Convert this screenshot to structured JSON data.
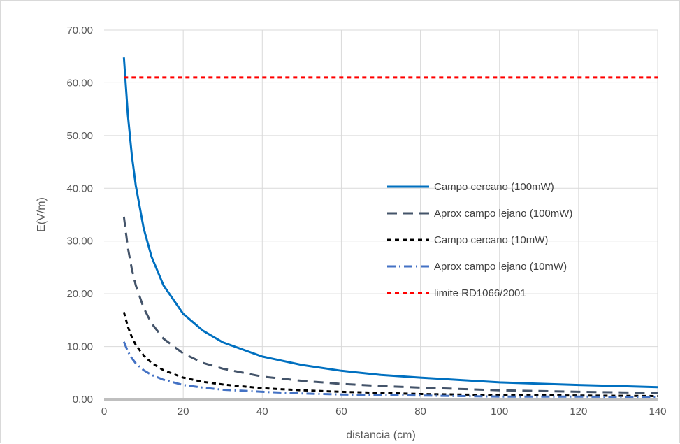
{
  "chart_data": {
    "type": "line",
    "title": "",
    "xlabel": "distancia (cm)",
    "ylabel": "E(V/m)",
    "xlim": [
      0,
      140
    ],
    "ylim": [
      0,
      70
    ],
    "x_ticks": [
      0,
      20,
      40,
      60,
      80,
      100,
      120,
      140
    ],
    "x_tick_labels": [
      "0",
      "20",
      "40",
      "60",
      "80",
      "100",
      "120",
      "140"
    ],
    "y_ticks": [
      0,
      10,
      20,
      30,
      40,
      50,
      60,
      70
    ],
    "y_tick_labels": [
      "0.00",
      "10.00",
      "20.00",
      "30.00",
      "40.00",
      "50.00",
      "60.00",
      "70.00"
    ],
    "grid": true,
    "legend_position": "right",
    "series": [
      {
        "name": "Campo cercano (100mW)",
        "color": "#0070c0",
        "dash": "solid",
        "x": [
          5,
          6,
          7,
          8,
          10,
          12,
          15,
          20,
          25,
          30,
          40,
          50,
          60,
          70,
          80,
          100,
          120,
          140
        ],
        "y": [
          64.8,
          54.0,
          46.3,
          40.5,
          32.4,
          27.0,
          21.6,
          16.2,
          13.0,
          10.8,
          8.1,
          6.5,
          5.4,
          4.6,
          4.1,
          3.2,
          2.7,
          2.3
        ]
      },
      {
        "name": "Aprox campo lejano (100mW)",
        "color": "#44546a",
        "dash": "long-dash",
        "x": [
          5,
          6,
          7,
          8,
          10,
          12,
          15,
          20,
          25,
          30,
          40,
          50,
          60,
          70,
          80,
          100,
          120,
          140
        ],
        "y": [
          34.6,
          28.8,
          24.7,
          21.6,
          17.3,
          14.4,
          11.5,
          8.7,
          6.9,
          5.8,
          4.3,
          3.5,
          2.9,
          2.5,
          2.2,
          1.7,
          1.4,
          1.2
        ]
      },
      {
        "name": "Campo cercano (10mW)",
        "color": "#000000",
        "dash": "short-dash",
        "x": [
          5,
          6,
          7,
          8,
          10,
          12,
          15,
          20,
          25,
          30,
          40,
          50,
          60,
          70,
          80,
          100,
          120,
          140
        ],
        "y": [
          16.5,
          13.8,
          11.8,
          10.3,
          8.3,
          6.9,
          5.5,
          4.1,
          3.3,
          2.8,
          2.1,
          1.7,
          1.4,
          1.2,
          1.0,
          0.8,
          0.7,
          0.6
        ]
      },
      {
        "name": "Aprox campo lejano (10mW)",
        "color": "#4472c4",
        "dash": "dash-dot",
        "x": [
          5,
          6,
          7,
          8,
          10,
          12,
          15,
          20,
          25,
          30,
          40,
          50,
          60,
          70,
          80,
          100,
          120,
          140
        ],
        "y": [
          10.9,
          9.1,
          7.8,
          6.8,
          5.5,
          4.6,
          3.7,
          2.7,
          2.2,
          1.8,
          1.4,
          1.1,
          0.9,
          0.8,
          0.7,
          0.5,
          0.5,
          0.4
        ]
      },
      {
        "name": "limite RD1066/2001",
        "color": "#ff0000",
        "dash": "short-dash",
        "x": [
          5,
          140
        ],
        "y": [
          61,
          61
        ]
      }
    ]
  }
}
